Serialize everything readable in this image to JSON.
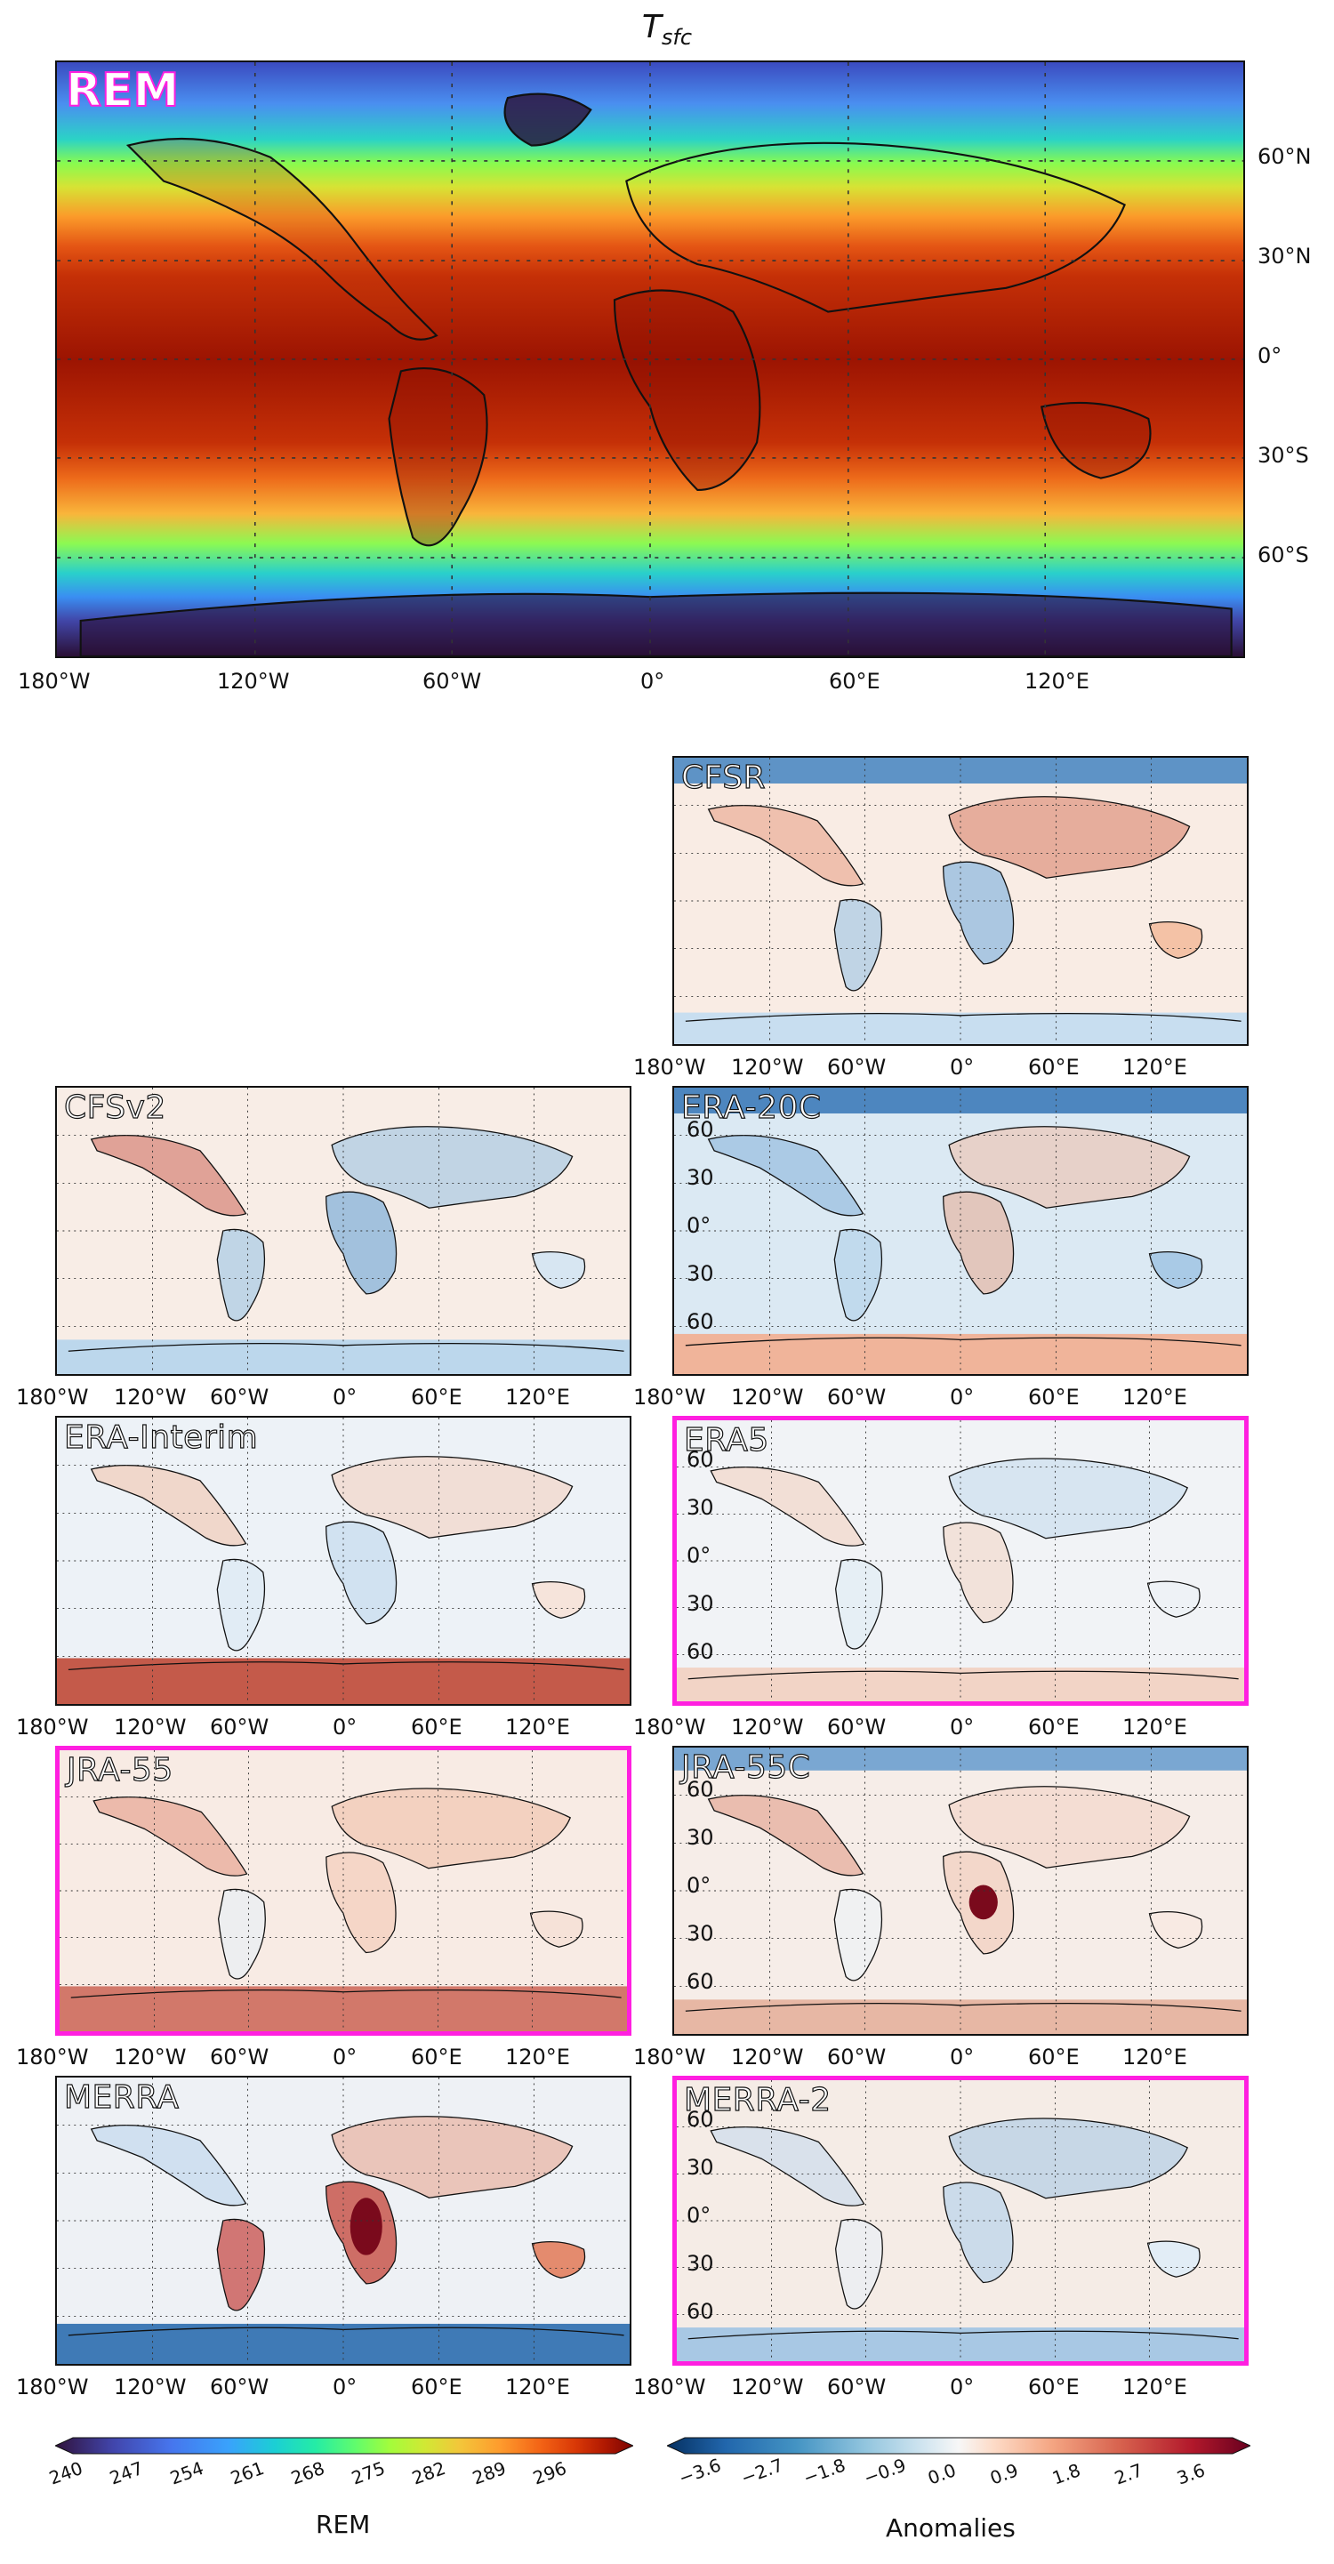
{
  "title": "T_sfc",
  "title_main": "T",
  "title_sub": "sfc",
  "main_panel": {
    "label": "REM",
    "lat_ticks": [
      "60°N",
      "30°N",
      "0°",
      "30°S",
      "60°S"
    ],
    "lon_ticks": [
      "180°W",
      "120°W",
      "60°W",
      "0°",
      "60°E",
      "120°E"
    ]
  },
  "panels": [
    {
      "label": "CFSR",
      "highlight": false,
      "lat_ticks_shown": false
    },
    {
      "label": "CFSv2",
      "highlight": false,
      "lat_ticks_shown": false
    },
    {
      "label": "ERA-20C",
      "highlight": false,
      "lat_ticks_shown": true
    },
    {
      "label": "ERA-Interim",
      "highlight": false,
      "lat_ticks_shown": false
    },
    {
      "label": "ERA5",
      "highlight": true,
      "lat_ticks_shown": true
    },
    {
      "label": "JRA-55",
      "highlight": true,
      "lat_ticks_shown": false
    },
    {
      "label": "JRA-55C",
      "highlight": false,
      "lat_ticks_shown": true
    },
    {
      "label": "MERRA",
      "highlight": false,
      "lat_ticks_shown": false
    },
    {
      "label": "MERRA-2",
      "highlight": true,
      "lat_ticks_shown": true
    }
  ],
  "small_lat_ticks": [
    "60",
    "30",
    "0°",
    "30",
    "60"
  ],
  "small_lon_ticks": [
    "180°W",
    "120°W",
    "60°W",
    "0°",
    "60°E",
    "120°E"
  ],
  "colorbar_rem": {
    "label": "REM",
    "ticks": [
      "240",
      "247",
      "254",
      "261",
      "268",
      "275",
      "282",
      "289",
      "296"
    ],
    "colors": [
      "#30123b",
      "#4145ab",
      "#4675ed",
      "#39a2fc",
      "#1bcfd4",
      "#24eca6",
      "#61fc6c",
      "#a4fc3b",
      "#d1e834",
      "#f3c63a",
      "#fe9b2d",
      "#f36315",
      "#d93806",
      "#b11901",
      "#7a0403"
    ]
  },
  "colorbar_anom": {
    "label": "Anomalies",
    "ticks": [
      "−3.6",
      "−2.7",
      "−1.8",
      "−0.9",
      "0.0",
      "0.9",
      "1.8",
      "2.7",
      "3.6"
    ],
    "colors": [
      "#053061",
      "#2166ac",
      "#4393c3",
      "#92c5de",
      "#d1e5f0",
      "#f7f7f7",
      "#fddbc7",
      "#f4a582",
      "#d6604d",
      "#b2182b",
      "#67001f"
    ]
  }
}
